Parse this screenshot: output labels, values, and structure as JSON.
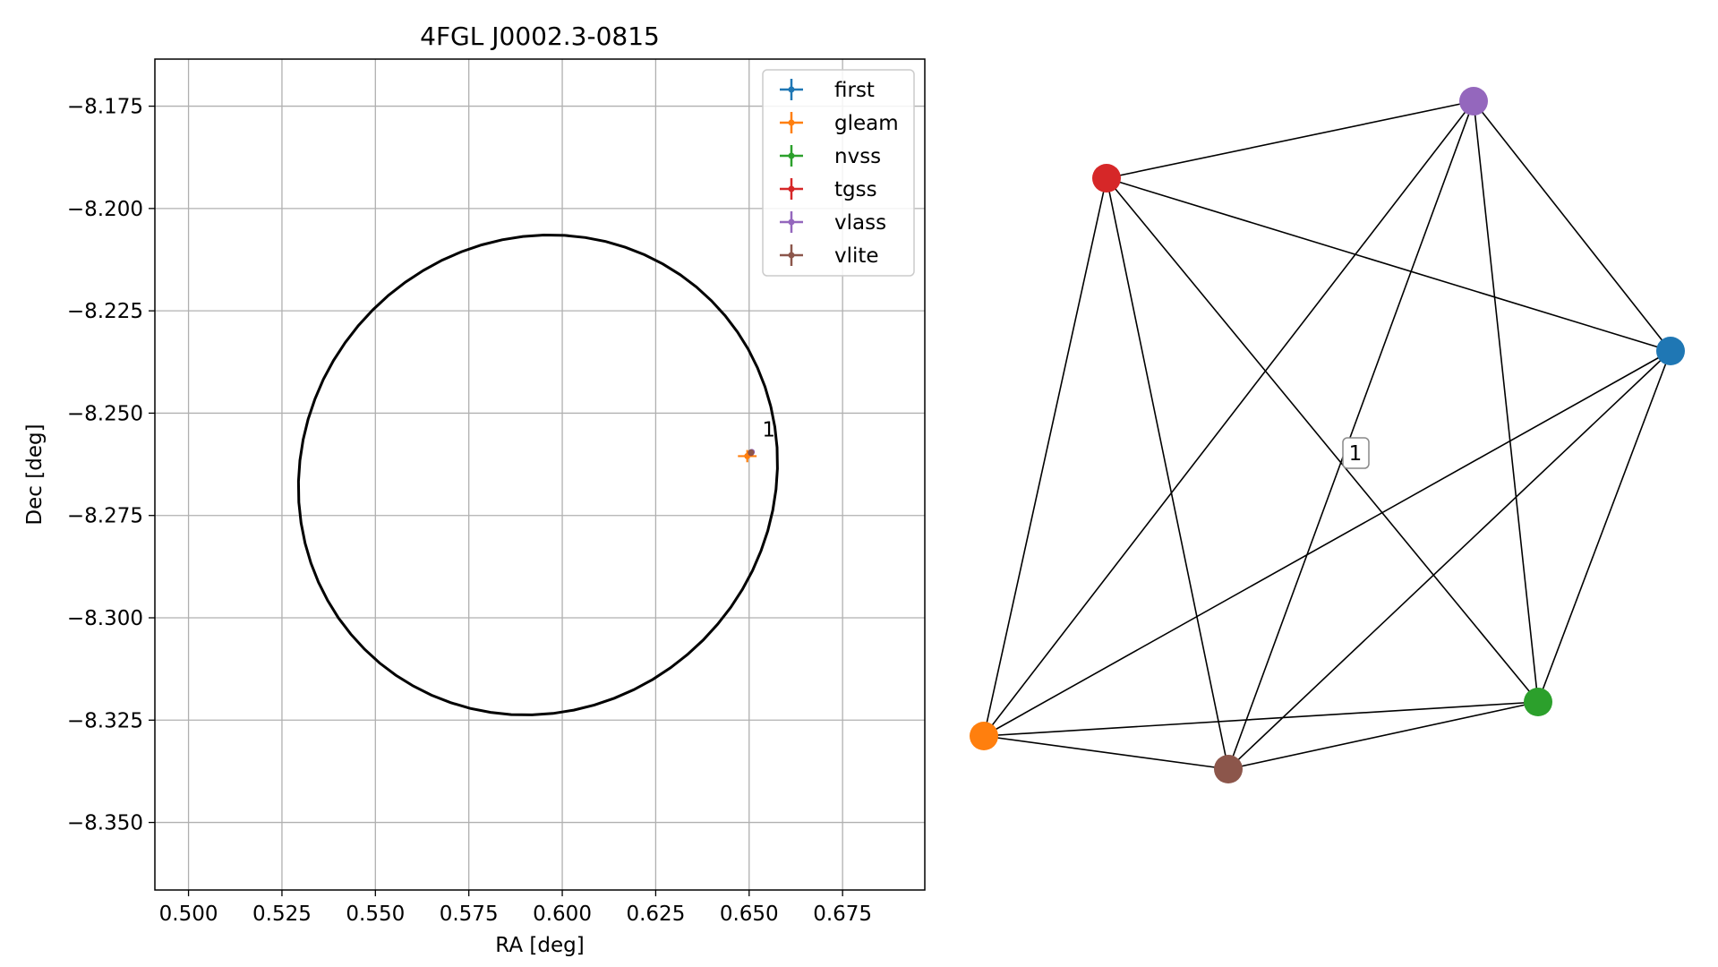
{
  "chart_data": [
    {
      "type": "scatter",
      "title": "4FGL J0002.3-0815",
      "xlabel": "RA [deg]",
      "ylabel": "Dec [deg]",
      "xlim": [
        0.491,
        0.697
      ],
      "ylim": [
        -8.3665,
        -8.1635
      ],
      "grid": true,
      "xticks": [
        0.5,
        0.525,
        0.55,
        0.575,
        0.6,
        0.625,
        0.65,
        0.675
      ],
      "xtick_labels": [
        "0.500",
        "0.525",
        "0.550",
        "0.575",
        "0.600",
        "0.625",
        "0.650",
        "0.675"
      ],
      "yticks": [
        -8.175,
        -8.2,
        -8.225,
        -8.25,
        -8.275,
        -8.3,
        -8.325,
        -8.35
      ],
      "ytick_labels": [
        "−8.175",
        "−8.200",
        "−8.225",
        "−8.250",
        "−8.275",
        "−8.300",
        "−8.325",
        "−8.350"
      ],
      "legend_position": "top-right",
      "ellipse": {
        "center": [
          0.5935,
          -8.2651
        ],
        "semi_axis_x": 0.0645,
        "semi_axis_y": 0.0582,
        "rotation_deg": 15,
        "color": "#000000"
      },
      "series": [
        {
          "name": "first",
          "color": "#1f77b4",
          "x": [
            0.6505
          ],
          "y": [
            -8.2597
          ],
          "xerr": [
            0.0003
          ],
          "yerr": [
            0.0003
          ]
        },
        {
          "name": "gleam",
          "color": "#ff7f0e",
          "x": [
            0.6495
          ],
          "y": [
            -8.2605
          ],
          "xerr": [
            0.0025
          ],
          "yerr": [
            0.0015
          ]
        },
        {
          "name": "nvss",
          "color": "#2ca02c",
          "x": [
            0.6505
          ],
          "y": [
            -8.2597
          ],
          "xerr": [
            0.0004
          ],
          "yerr": [
            0.0004
          ]
        },
        {
          "name": "tgss",
          "color": "#d62728",
          "x": [
            0.6505
          ],
          "y": [
            -8.2597
          ],
          "xerr": [
            0.0004
          ],
          "yerr": [
            0.0004
          ]
        },
        {
          "name": "vlass",
          "color": "#9467bd",
          "x": [
            0.6507
          ],
          "y": [
            -8.2595
          ],
          "xerr": [
            0.0003
          ],
          "yerr": [
            0.0003
          ]
        },
        {
          "name": "vlite",
          "color": "#8c564b",
          "x": [
            0.6505
          ],
          "y": [
            -8.2596
          ],
          "xerr": [
            0.0004
          ],
          "yerr": [
            0.0004
          ]
        }
      ],
      "annotations": [
        {
          "text": "1",
          "x": 0.6535,
          "y": -8.2557
        }
      ]
    },
    {
      "type": "network",
      "node_colors": {
        "first": "#1f77b4",
        "gleam": "#ff7f0e",
        "nvss": "#2ca02c",
        "tgss": "#d62728",
        "vlass": "#9467bd",
        "vlite": "#8c564b"
      },
      "edges": [
        [
          "tgss",
          "vlass"
        ],
        [
          "tgss",
          "first"
        ],
        [
          "tgss",
          "gleam"
        ],
        [
          "tgss",
          "vlite"
        ],
        [
          "tgss",
          "nvss"
        ],
        [
          "vlass",
          "first"
        ],
        [
          "vlass",
          "gleam"
        ],
        [
          "vlass",
          "vlite"
        ],
        [
          "vlass",
          "nvss"
        ],
        [
          "first",
          "gleam"
        ],
        [
          "first",
          "vlite"
        ],
        [
          "first",
          "nvss"
        ],
        [
          "gleam",
          "nvss"
        ],
        [
          "gleam",
          "vlite"
        ],
        [
          "vlite",
          "nvss"
        ]
      ],
      "label": "1"
    }
  ]
}
